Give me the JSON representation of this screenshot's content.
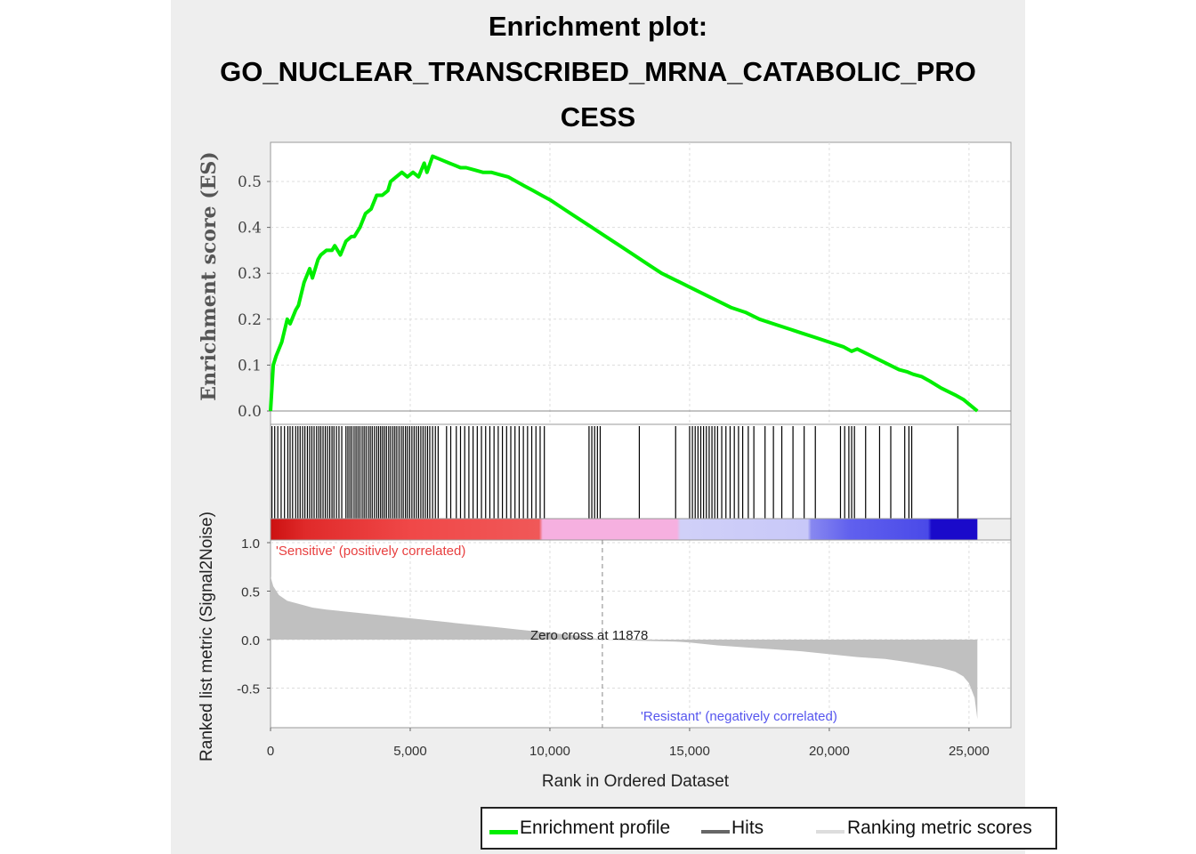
{
  "title_lines": [
    "Enrichment plot:",
    "GO_NUCLEAR_TRANSCRIBED_MRNA_CATABOLIC_PRO",
    "CESS"
  ],
  "chart_data": {
    "type": "line",
    "title": "Enrichment plot: GO_NUCLEAR_TRANSCRIBED_MRNA_CATABOLIC_PROCESS",
    "xlabel": "Rank in Ordered Dataset",
    "xlim": [
      0,
      26500
    ],
    "x_ticks": [
      0,
      5000,
      10000,
      15000,
      20000,
      25000
    ],
    "x_tick_labels": [
      "0",
      "5,000",
      "10,000",
      "15,000",
      "20,000",
      "25,000"
    ],
    "grid": true,
    "legend_position": "bottom",
    "legend": [
      "Enrichment profile",
      "Hits",
      "Ranking metric scores"
    ],
    "colors": {
      "profile": "#00ee00",
      "hits": "#000000",
      "metric": "#c0c0c0",
      "positive": "#e84040",
      "negative": "#5555ee"
    },
    "es_panel": {
      "ylabel": "Enrichment score (ES)",
      "ylim": [
        -0.005,
        0.585
      ],
      "y_ticks": [
        0.0,
        0.1,
        0.2,
        0.3,
        0.4,
        0.5
      ],
      "y_tick_labels": [
        "0.0",
        "0.1",
        "0.2",
        "0.3",
        "0.4",
        "0.5"
      ],
      "series": [
        {
          "name": "Enrichment profile",
          "x": [
            0,
            100,
            200,
            400,
            600,
            700,
            900,
            1000,
            1200,
            1400,
            1500,
            1700,
            1800,
            2000,
            2200,
            2300,
            2500,
            2700,
            2900,
            3000,
            3200,
            3400,
            3600,
            3800,
            4000,
            4200,
            4300,
            4500,
            4700,
            4900,
            5100,
            5300,
            5500,
            5600,
            5800,
            6000,
            6200,
            6400,
            6600,
            6800,
            7000,
            7300,
            7600,
            7900,
            8200,
            8500,
            8800,
            9100,
            9400,
            9700,
            10000,
            10500,
            11000,
            11500,
            12000,
            12500,
            13000,
            13500,
            14000,
            14500,
            15000,
            15500,
            16000,
            16500,
            17000,
            17500,
            18000,
            18500,
            19000,
            19500,
            20000,
            20500,
            20800,
            21000,
            21500,
            22000,
            22500,
            22800,
            23000,
            23300,
            23600,
            24000,
            24500,
            24800,
            25000,
            25300
          ],
          "y": [
            0.0,
            0.1,
            0.12,
            0.15,
            0.2,
            0.19,
            0.22,
            0.23,
            0.28,
            0.31,
            0.29,
            0.33,
            0.34,
            0.35,
            0.35,
            0.36,
            0.34,
            0.37,
            0.38,
            0.38,
            0.4,
            0.43,
            0.44,
            0.47,
            0.47,
            0.48,
            0.5,
            0.51,
            0.52,
            0.51,
            0.52,
            0.51,
            0.54,
            0.52,
            0.555,
            0.55,
            0.545,
            0.54,
            0.535,
            0.53,
            0.53,
            0.525,
            0.52,
            0.52,
            0.515,
            0.51,
            0.5,
            0.49,
            0.48,
            0.47,
            0.46,
            0.44,
            0.42,
            0.4,
            0.38,
            0.36,
            0.34,
            0.32,
            0.3,
            0.285,
            0.27,
            0.255,
            0.24,
            0.225,
            0.215,
            0.2,
            0.19,
            0.18,
            0.17,
            0.16,
            0.15,
            0.14,
            0.13,
            0.135,
            0.12,
            0.105,
            0.09,
            0.085,
            0.08,
            0.075,
            0.065,
            0.05,
            0.035,
            0.025,
            0.015,
            0.0
          ]
        }
      ]
    },
    "hits": [
      50,
      150,
      260,
      380,
      500,
      620,
      700,
      790,
      900,
      980,
      1060,
      1150,
      1230,
      1320,
      1400,
      1480,
      1560,
      1650,
      1730,
      1800,
      1880,
      1960,
      2040,
      2120,
      2200,
      2270,
      2360,
      2450,
      2550,
      2700,
      2770,
      2840,
      2910,
      2990,
      3060,
      3130,
      3200,
      3280,
      3350,
      3420,
      3500,
      3570,
      3640,
      3720,
      3800,
      3870,
      3940,
      4010,
      4080,
      4150,
      4230,
      4300,
      4380,
      4450,
      4520,
      4600,
      4680,
      4750,
      4830,
      4900,
      4980,
      5060,
      5140,
      5220,
      5300,
      5380,
      5460,
      5540,
      5620,
      5700,
      5800,
      5900,
      6000,
      6300,
      6450,
      6650,
      6800,
      6950,
      7100,
      7250,
      7400,
      7550,
      7700,
      7850,
      8000,
      8150,
      8300,
      8450,
      8600,
      8750,
      8900,
      9050,
      9200,
      9350,
      9500,
      9650,
      9800,
      11400,
      11500,
      11600,
      11700,
      11800,
      13200,
      14500,
      15000,
      15100,
      15200,
      15300,
      15400,
      15500,
      15600,
      15700,
      15800,
      15900,
      16000,
      16150,
      16300,
      16450,
      16600,
      16750,
      16900,
      17100,
      17300,
      17700,
      18000,
      18300,
      18700,
      19100,
      19500,
      20400,
      20550,
      20700,
      20800,
      20900,
      21300,
      21800,
      22200,
      22700,
      22850,
      22950,
      24600
    ],
    "metric_panel": {
      "ylabel": "Ranked list metric (Signal2Noise)",
      "ylim": [
        -0.88,
        1.14
      ],
      "y_ticks": [
        -0.5,
        0.0,
        0.5,
        1.0
      ],
      "y_tick_labels": [
        "-0.5",
        "0.0",
        "0.5",
        "1.0"
      ],
      "series": [
        {
          "name": "Ranking metric scores",
          "x": [
            0,
            100,
            300,
            600,
            1000,
            1500,
            2000,
            3000,
            4000,
            5000,
            6000,
            7000,
            8000,
            9000,
            10000,
            11000,
            11878,
            13000,
            14500,
            15000,
            16000,
            17000,
            18000,
            19000,
            20000,
            21000,
            22000,
            23000,
            24000,
            24500,
            24800,
            25000,
            25200,
            25300
          ],
          "y": [
            0.65,
            0.55,
            0.46,
            0.4,
            0.37,
            0.33,
            0.31,
            0.28,
            0.25,
            0.22,
            0.19,
            0.16,
            0.13,
            0.1,
            0.07,
            0.04,
            0.0,
            -0.01,
            -0.02,
            -0.03,
            -0.06,
            -0.08,
            -0.1,
            -0.12,
            -0.15,
            -0.18,
            -0.2,
            -0.24,
            -0.29,
            -0.33,
            -0.38,
            -0.45,
            -0.6,
            -0.82
          ]
        }
      ],
      "zero_cross_label": "Zero cross at 11878",
      "positive_label": "'Sensitive' (positively correlated)",
      "negative_label": "'Resistant' (negatively correlated)"
    }
  }
}
